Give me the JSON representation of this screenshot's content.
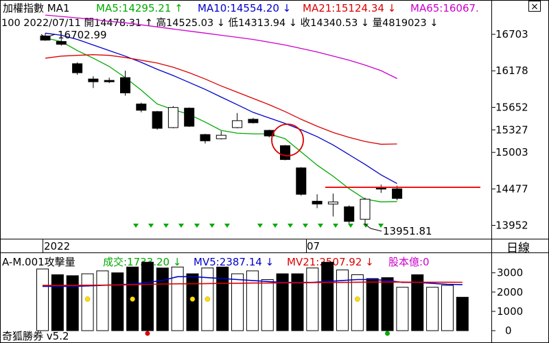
{
  "header": {
    "title": "加權指數 MA1",
    "ma_labels": [
      {
        "text": "MA5:14295.21",
        "arrow": "↑",
        "color": "#00aa00"
      },
      {
        "text": "MA10:14554.20",
        "arrow": "↓",
        "color": "#0000cc"
      },
      {
        "text": "MA21:15124.34",
        "arrow": "↓",
        "color": "#dd0000"
      },
      {
        "text": "MA65:16067.",
        "arrow": "",
        "color": "#cc00cc"
      }
    ],
    "info": [
      {
        "text": "100 2022/07/11 開14478.31",
        "arrow": "↑"
      },
      {
        "text": "高14525.03",
        "arrow": "↓"
      },
      {
        "text": "低14313.94",
        "arrow": "↓"
      },
      {
        "text": "收14340.53",
        "arrow": "↓"
      },
      {
        "text": "量4819023",
        "arrow": "↓"
      }
    ],
    "close_button": "×"
  },
  "x_axis": {
    "label_2022": "2022",
    "label_07": "07",
    "period": "日線"
  },
  "annotations": {
    "high": "16702.99",
    "low": "13951.81"
  },
  "bottom": {
    "title": "A-M.001攻擊量",
    "labels": [
      {
        "text": "成交:1733.20",
        "arrow": "↓",
        "color": "#00aa00"
      },
      {
        "text": "MV5:2387.14",
        "arrow": "↓",
        "color": "#0000cc"
      },
      {
        "text": "MV21:2507.92",
        "arrow": "↓",
        "color": "#dd0000"
      },
      {
        "text": "股本億:0",
        "arrow": "",
        "color": "#cc00cc"
      }
    ]
  },
  "footer": {
    "app": "奇狐勝券 v5.2"
  },
  "colors": {
    "ma5": "#00aa00",
    "ma10": "#0000cc",
    "ma21": "#dd0000",
    "ma65": "#cc00cc",
    "bear": "#000000",
    "bull": "#ffffff",
    "hline": "#ff0000"
  },
  "chart_data": [
    {
      "type": "candlestick",
      "title": "加權指數",
      "y_ticks": [
        16703,
        16178,
        15652,
        15327,
        15003,
        14477,
        13952
      ],
      "ylim": [
        13760,
        17000
      ],
      "candles": [
        {
          "o": 16680,
          "h": 16720,
          "l": 16610,
          "c": 16620
        },
        {
          "o": 16600,
          "h": 16640,
          "l": 16540,
          "c": 16560
        },
        {
          "o": 16280,
          "h": 16300,
          "l": 16120,
          "c": 16150
        },
        {
          "o": 16060,
          "h": 16100,
          "l": 15930,
          "c": 16020
        },
        {
          "o": 16040,
          "h": 16080,
          "l": 16000,
          "c": 16020
        },
        {
          "o": 16080,
          "h": 16180,
          "l": 15820,
          "c": 15860
        },
        {
          "o": 15700,
          "h": 15720,
          "l": 15580,
          "c": 15610
        },
        {
          "o": 15590,
          "h": 15600,
          "l": 15330,
          "c": 15350
        },
        {
          "o": 15360,
          "h": 15670,
          "l": 15350,
          "c": 15650
        },
        {
          "o": 15640,
          "h": 15650,
          "l": 15370,
          "c": 15380
        },
        {
          "o": 15260,
          "h": 15270,
          "l": 15130,
          "c": 15170
        },
        {
          "o": 15200,
          "h": 15310,
          "l": 15190,
          "c": 15250
        },
        {
          "o": 15360,
          "h": 15570,
          "l": 15350,
          "c": 15460
        },
        {
          "o": 15480,
          "h": 15500,
          "l": 15420,
          "c": 15430
        },
        {
          "o": 15320,
          "h": 15330,
          "l": 15220,
          "c": 15240
        },
        {
          "o": 15100,
          "h": 15110,
          "l": 14890,
          "c": 14900
        },
        {
          "o": 14780,
          "h": 14790,
          "l": 14380,
          "c": 14400
        },
        {
          "o": 14300,
          "h": 14400,
          "l": 14200,
          "c": 14260
        },
        {
          "o": 14260,
          "h": 14410,
          "l": 14080,
          "c": 14290
        },
        {
          "o": 14220,
          "h": 14240,
          "l": 13980,
          "c": 14010
        },
        {
          "o": 14040,
          "h": 14350,
          "l": 13960,
          "c": 14330
        },
        {
          "o": 14490,
          "h": 14540,
          "l": 14420,
          "c": 14480
        },
        {
          "o": 14478.31,
          "h": 14525.03,
          "l": 14313.94,
          "c": 14340.53
        }
      ],
      "series": [
        {
          "name": "MA5",
          "values": [
            16650,
            16600,
            16470,
            16360,
            16240,
            16080,
            15900,
            15700,
            15620,
            15550,
            15440,
            15320,
            15280,
            15270,
            15270,
            15200,
            15010,
            14820,
            14660,
            14480,
            14330,
            14290,
            14295
          ]
        },
        {
          "name": "MA10",
          "values": [
            16720,
            16690,
            16630,
            16550,
            16470,
            16390,
            16300,
            16200,
            16110,
            16010,
            15910,
            15800,
            15690,
            15580,
            15500,
            15420,
            15330,
            15230,
            15110,
            14970,
            14830,
            14680,
            14554
          ]
        },
        {
          "name": "MA21",
          "values": [
            16360,
            16390,
            16400,
            16410,
            16400,
            16370,
            16330,
            16290,
            16230,
            16150,
            16060,
            15960,
            15870,
            15780,
            15690,
            15590,
            15480,
            15380,
            15290,
            15220,
            15160,
            15120,
            15124
          ]
        },
        {
          "name": "MA65",
          "values": [
            16980,
            16960,
            16940,
            16920,
            16890,
            16870,
            16840,
            16810,
            16780,
            16750,
            16720,
            16690,
            16660,
            16630,
            16590,
            16550,
            16500,
            16450,
            16390,
            16330,
            16260,
            16180,
            16067
          ]
        }
      ],
      "hline": 14500,
      "signal_arrows": [
        7,
        8,
        9,
        10,
        11,
        12,
        13,
        14,
        15,
        16,
        18,
        19,
        20,
        21,
        22,
        23,
        24,
        25,
        26,
        27,
        28,
        29,
        30
      ]
    },
    {
      "type": "bar",
      "title": "A-M.001攻擊量",
      "y_ticks": [
        0,
        1000,
        2000,
        3000
      ],
      "ylim": [
        0,
        3700
      ],
      "values": [
        3200,
        2900,
        2850,
        2950,
        3100,
        3000,
        3300,
        3550,
        3250,
        3300,
        2950,
        3250,
        3300,
        2950,
        3100,
        2650,
        2950,
        2950,
        3250,
        3550,
        3150,
        2900,
        2700,
        2750,
        2250,
        2900,
        2250,
        2350,
        1733
      ],
      "bar_style": [
        "bull",
        "bear",
        "bear",
        "bull",
        "bull",
        "bear",
        "bear",
        "bear",
        "bear",
        "bull",
        "bear",
        "bull",
        "bear",
        "bull",
        "bull",
        "bull",
        "bear",
        "bear",
        "bull",
        "bear",
        "bull",
        "bull",
        "bear",
        "bear",
        "bull",
        "bear",
        "bull",
        "bull",
        "bear"
      ],
      "series": [
        {
          "name": "MV5",
          "values": [
            2300,
            2300,
            2300,
            2320,
            2350,
            2380,
            2420,
            2500,
            2600,
            2800,
            2800,
            2750,
            2700,
            2650,
            2600,
            2550,
            2500,
            2500,
            2500,
            2550,
            2600,
            2650,
            2650,
            2600,
            2500,
            2500,
            2450,
            2400,
            2387
          ]
        },
        {
          "name": "MV21",
          "values": [
            2350,
            2350,
            2350,
            2360,
            2360,
            2370,
            2380,
            2400,
            2420,
            2430,
            2430,
            2440,
            2450,
            2460,
            2470,
            2470,
            2480,
            2480,
            2490,
            2500,
            2500,
            2510,
            2520,
            2520,
            2520,
            2510,
            2510,
            2510,
            2508
          ]
        }
      ],
      "dots": {
        "yellow": [
          3,
          6,
          10,
          11,
          21
        ],
        "red": [
          7
        ],
        "green": [
          23
        ]
      }
    }
  ]
}
